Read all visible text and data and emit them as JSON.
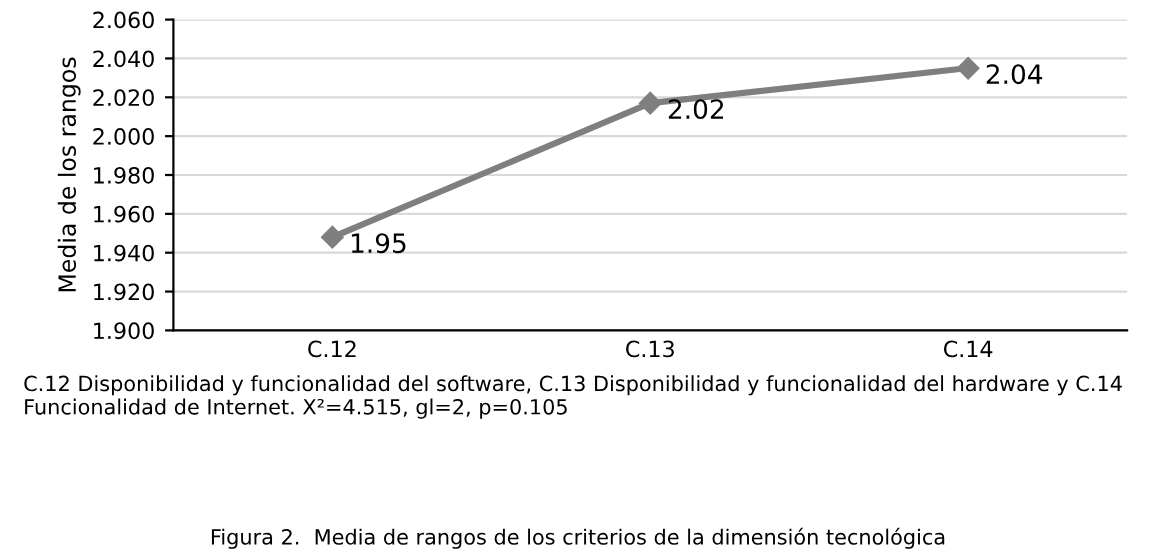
{
  "chart_data": {
    "type": "line",
    "ylabel": "Media de los rangos",
    "categories": [
      "C.12",
      "C.13",
      "C.14"
    ],
    "series": [
      {
        "color": "#7f7f7f",
        "values": [
          1.948,
          2.017,
          2.035
        ],
        "value_labels": [
          "1.95",
          "2.02",
          "2.04"
        ]
      }
    ],
    "ylim": [
      1.9,
      2.06
    ],
    "yticks": [
      {
        "value": 1.9,
        "label": "1.900"
      },
      {
        "value": 1.92,
        "label": "1.920"
      },
      {
        "value": 1.94,
        "label": "1.940"
      },
      {
        "value": 1.96,
        "label": "1.960"
      },
      {
        "value": 1.98,
        "label": "1.980"
      },
      {
        "value": 2.0,
        "label": "2.000"
      },
      {
        "value": 2.02,
        "label": "2.020"
      },
      {
        "value": 2.04,
        "label": "2.040"
      },
      {
        "value": 2.06,
        "label": "2.060"
      }
    ],
    "grid": "y",
    "marker": "diamond",
    "line_style": "solid",
    "annotations": [
      "C.12 Disponibilidad y funcionalidad del software, C.13 Disponibilidad y funcionalidad del hardware y C.14 Funcionalidad de Internet. X²=4.515, gl=2, p=0.105",
      "Figura 2.  Media de rangos de los criterios de la dimensión tecnológica"
    ]
  }
}
